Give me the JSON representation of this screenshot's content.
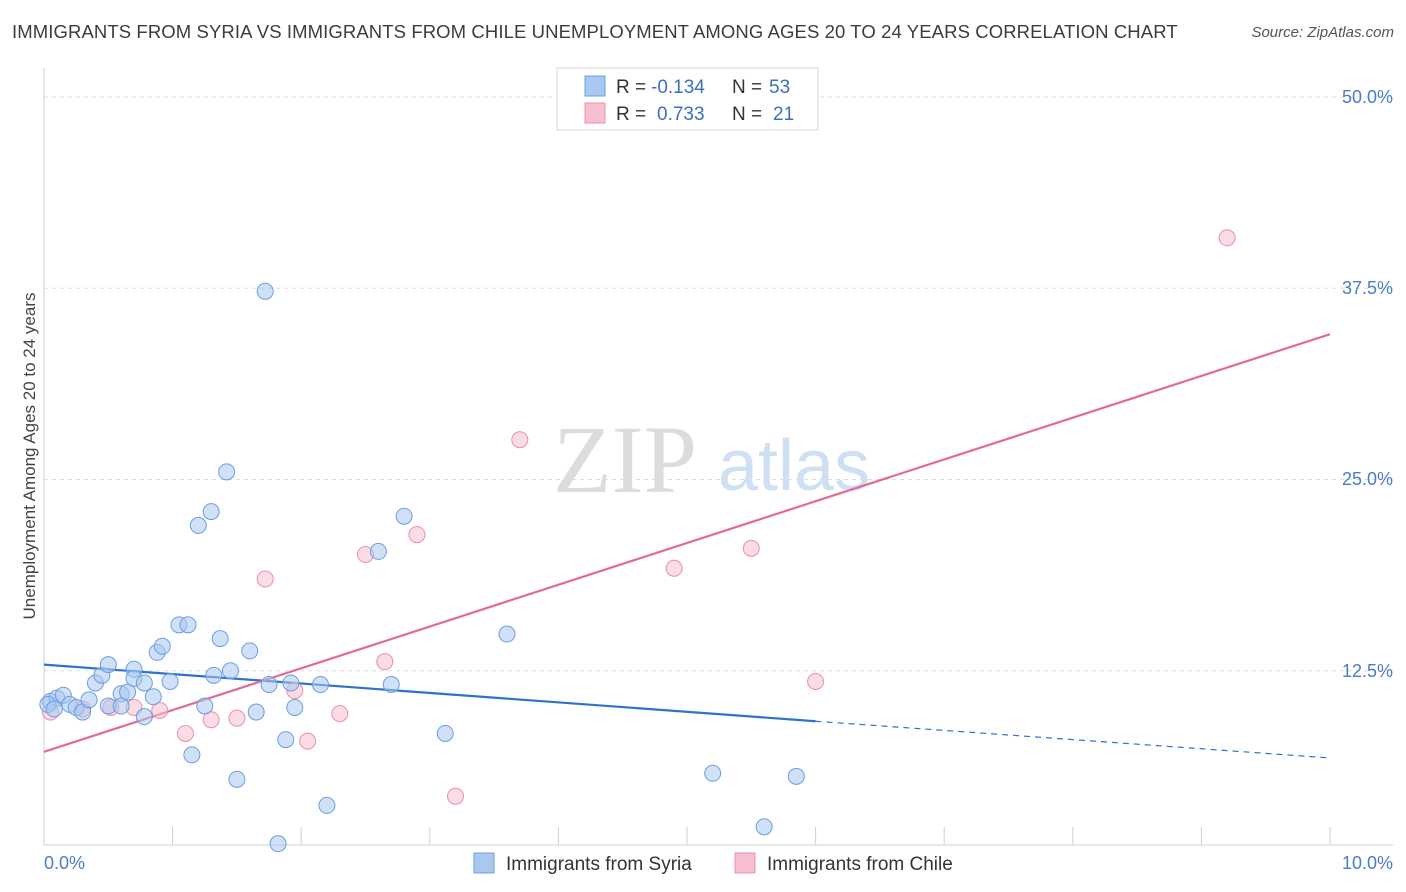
{
  "header": {
    "title": "IMMIGRANTS FROM SYRIA VS IMMIGRANTS FROM CHILE UNEMPLOYMENT AMONG AGES 20 TO 24 YEARS CORRELATION CHART",
    "source": "Source: ZipAtlas.com"
  },
  "watermark": {
    "zip": "ZIP",
    "atlas": "atlas"
  },
  "legend": {
    "rows": [
      {
        "r_label": "R =",
        "r_value": "-0.134",
        "n_label": "N =",
        "n_value": "53"
      },
      {
        "r_label": "R =",
        "r_value": "0.733",
        "n_label": "N =",
        "n_value": "21"
      }
    ]
  },
  "colors": {
    "syria_fill": "#a9c8f0",
    "syria_stroke": "#6a9fe0",
    "syria_line": "#2f72c9",
    "chile_fill": "#f7c0d0",
    "chile_stroke": "#e890aa",
    "chile_line": "#e06b96",
    "axis_label": "#4a7cc7",
    "grid": "#dddddd"
  },
  "chart_data": {
    "type": "scatter",
    "title": "IMMIGRANTS FROM SYRIA VS IMMIGRANTS FROM CHILE UNEMPLOYMENT AMONG AGES 20 TO 24 YEARS CORRELATION CHART",
    "xlabel": "",
    "ylabel": "Unemployment Among Ages 20 to 24 years",
    "xlim": [
      0,
      10
    ],
    "ylim": [
      0,
      50
    ],
    "x_tick_labels": [
      "0.0%",
      "10.0%"
    ],
    "y_ticks": [
      12.5,
      25.0,
      37.5,
      50.0
    ],
    "y_tick_labels": [
      "12.5%",
      "25.0%",
      "37.5%",
      "50.0%"
    ],
    "grid": true,
    "series": [
      {
        "name": "Immigrants from Syria",
        "r": -0.134,
        "n": 53,
        "trend": {
          "x0": 0,
          "y0": 12.9,
          "x1": 6.0,
          "y1": 9.2,
          "dash_x1": 10.0,
          "dash_y1": 6.8
        },
        "points": [
          [
            0.05,
            10.5
          ],
          [
            0.1,
            10.7
          ],
          [
            0.15,
            10.9
          ],
          [
            0.2,
            10.3
          ],
          [
            0.25,
            10.1
          ],
          [
            0.3,
            9.8
          ],
          [
            0.35,
            10.6
          ],
          [
            0.4,
            11.7
          ],
          [
            0.45,
            12.2
          ],
          [
            0.5,
            12.9
          ],
          [
            0.5,
            10.2
          ],
          [
            0.6,
            11.0
          ],
          [
            0.6,
            10.2
          ],
          [
            0.65,
            11.1
          ],
          [
            0.7,
            12.6
          ],
          [
            0.7,
            12.0
          ],
          [
            0.78,
            11.7
          ],
          [
            0.78,
            9.5
          ],
          [
            0.85,
            10.8
          ],
          [
            0.88,
            13.7
          ],
          [
            0.92,
            14.1
          ],
          [
            0.98,
            11.8
          ],
          [
            1.05,
            15.5
          ],
          [
            1.12,
            15.5
          ],
          [
            1.15,
            7.0
          ],
          [
            1.2,
            22.0
          ],
          [
            1.25,
            10.2
          ],
          [
            1.3,
            22.9
          ],
          [
            1.32,
            12.2
          ],
          [
            1.37,
            14.6
          ],
          [
            1.42,
            25.5
          ],
          [
            1.45,
            12.5
          ],
          [
            1.5,
            5.4
          ],
          [
            1.6,
            13.8
          ],
          [
            1.65,
            9.8
          ],
          [
            1.72,
            37.3
          ],
          [
            1.75,
            11.6
          ],
          [
            1.82,
            1.2
          ],
          [
            1.88,
            8.0
          ],
          [
            1.92,
            11.7
          ],
          [
            1.95,
            10.1
          ],
          [
            2.15,
            11.6
          ],
          [
            2.2,
            3.7
          ],
          [
            2.6,
            20.3
          ],
          [
            2.7,
            11.6
          ],
          [
            2.8,
            22.6
          ],
          [
            3.12,
            8.4
          ],
          [
            3.6,
            14.9
          ],
          [
            5.2,
            5.8
          ],
          [
            5.6,
            2.3
          ],
          [
            5.85,
            5.6
          ],
          [
            0.03,
            10.3
          ],
          [
            0.08,
            10.0
          ]
        ]
      },
      {
        "name": "Immigrants from Chile",
        "r": 0.733,
        "n": 21,
        "trend": {
          "x0": 0,
          "y0": 7.2,
          "x1": 10.0,
          "y1": 34.5
        },
        "points": [
          [
            0.05,
            9.8
          ],
          [
            0.3,
            10.0
          ],
          [
            0.52,
            10.1
          ],
          [
            0.7,
            10.1
          ],
          [
            0.9,
            9.9
          ],
          [
            1.1,
            8.4
          ],
          [
            1.3,
            9.3
          ],
          [
            1.5,
            9.4
          ],
          [
            1.72,
            18.5
          ],
          [
            1.95,
            11.2
          ],
          [
            2.05,
            7.9
          ],
          [
            2.3,
            9.7
          ],
          [
            2.5,
            20.1
          ],
          [
            2.65,
            13.1
          ],
          [
            2.9,
            21.4
          ],
          [
            3.2,
            4.3
          ],
          [
            3.7,
            27.6
          ],
          [
            4.9,
            19.2
          ],
          [
            5.5,
            20.5
          ],
          [
            6.0,
            11.8
          ],
          [
            9.2,
            40.8
          ]
        ]
      }
    ]
  }
}
